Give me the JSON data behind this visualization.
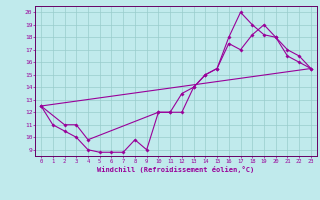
{
  "xlabel": "Windchill (Refroidissement éolien,°C)",
  "bg_color": "#c0eaec",
  "grid_color": "#99cccc",
  "line_color": "#990099",
  "spine_color": "#660066",
  "xlim": [
    -0.5,
    23.5
  ],
  "ylim": [
    8.5,
    20.5
  ],
  "xticks": [
    0,
    1,
    2,
    3,
    4,
    5,
    6,
    7,
    8,
    9,
    10,
    11,
    12,
    13,
    14,
    15,
    16,
    17,
    18,
    19,
    20,
    21,
    22,
    23
  ],
  "yticks": [
    9,
    10,
    11,
    12,
    13,
    14,
    15,
    16,
    17,
    18,
    19,
    20
  ],
  "line1_x": [
    0,
    1,
    2,
    3,
    4,
    5,
    6,
    7,
    8,
    9,
    10,
    11,
    12,
    13,
    14,
    15,
    16,
    17,
    18,
    19,
    20,
    21,
    22,
    23
  ],
  "line1_y": [
    12.5,
    11.0,
    10.5,
    10.0,
    9.0,
    8.8,
    8.8,
    8.8,
    9.8,
    9.0,
    12.0,
    12.0,
    13.5,
    14.0,
    15.0,
    15.5,
    17.5,
    17.0,
    18.2,
    19.0,
    18.0,
    17.0,
    16.5,
    15.5
  ],
  "line2_x": [
    0,
    2,
    3,
    4,
    10,
    11,
    12,
    13,
    14,
    15,
    16,
    17,
    18,
    19,
    20,
    21,
    22,
    23
  ],
  "line2_y": [
    12.5,
    11.0,
    11.0,
    9.8,
    12.0,
    12.0,
    12.0,
    14.0,
    15.0,
    15.5,
    18.0,
    20.0,
    19.0,
    18.2,
    18.0,
    16.5,
    16.0,
    15.5
  ],
  "line3_x": [
    0,
    23
  ],
  "line3_y": [
    12.5,
    15.5
  ]
}
